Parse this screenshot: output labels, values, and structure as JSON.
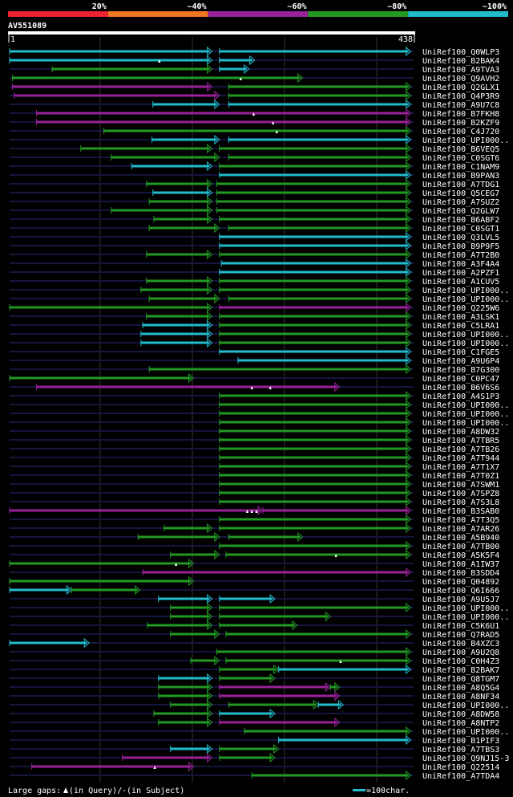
{
  "chart_data": {
    "type": "alignment-map",
    "query_id": "AV551089",
    "query_length": 438,
    "axis_start_label": "1",
    "axis_end_label": "438",
    "legend_scale": {
      "labels": [
        "20%",
        "~40%",
        "~60%",
        "~80%",
        "~100%"
      ],
      "colors": [
        "#ee2233",
        "#ee7722",
        "#992299",
        "#229922",
        "#22bbcc"
      ]
    },
    "colors": {
      "c": "#22bbcc",
      "g": "#229922",
      "p": "#992299",
      "dim": "#151540",
      "grid": "#333333"
    },
    "hits": [
      {
        "name": "UniRef100_Q0WLP3",
        "segs": [
          [
            1,
            220,
            "c"
          ],
          [
            228,
            435,
            "c"
          ]
        ],
        "tri": []
      },
      {
        "name": "UniRef100_B2BAK4",
        "segs": [
          [
            1,
            220,
            "c"
          ],
          [
            228,
            266,
            "c"
          ]
        ],
        "tri": [
          163
        ]
      },
      {
        "name": "UniRef100_A9TVA3",
        "segs": [
          [
            47,
            220,
            "g"
          ],
          [
            228,
            260,
            "c"
          ]
        ],
        "tri": []
      },
      {
        "name": "UniRef100_Q9AVH2",
        "segs": [
          [
            4,
            318,
            "g"
          ]
        ],
        "tri": [
          251
        ]
      },
      {
        "name": "UniRef100_Q2GLX1",
        "segs": [
          [
            4,
            220,
            "p"
          ],
          [
            238,
            435,
            "g"
          ]
        ],
        "tri": []
      },
      {
        "name": "UniRef100_Q4P3R9",
        "segs": [
          [
            6,
            228,
            "p"
          ],
          [
            238,
            435,
            "g"
          ]
        ],
        "tri": []
      },
      {
        "name": "UniRef100_A9U7C8",
        "segs": [
          [
            156,
            228,
            "c"
          ],
          [
            238,
            435,
            "c"
          ]
        ],
        "tri": []
      },
      {
        "name": "UniRef100_B7FKH8",
        "segs": [
          [
            30,
            435,
            "p"
          ]
        ],
        "tri": [
          265
        ]
      },
      {
        "name": "UniRef100_B2KZF9",
        "segs": [
          [
            30,
            435,
            "p"
          ]
        ],
        "tri": [
          286
        ]
      },
      {
        "name": "UniRef100_C4J720",
        "segs": [
          [
            103,
            435,
            "g"
          ]
        ],
        "tri": [
          290
        ]
      },
      {
        "name": "UniRef100_UPI000..",
        "segs": [
          [
            155,
            228,
            "c"
          ],
          [
            238,
            435,
            "c"
          ]
        ],
        "tri": []
      },
      {
        "name": "UniRef100_B6VEQ5",
        "segs": [
          [
            78,
            220,
            "g"
          ],
          [
            228,
            435,
            "g"
          ]
        ],
        "tri": []
      },
      {
        "name": "UniRef100_C0SGT6",
        "segs": [
          [
            111,
            228,
            "g"
          ],
          [
            238,
            435,
            "g"
          ]
        ],
        "tri": []
      },
      {
        "name": "UniRef100_C1NAM9",
        "segs": [
          [
            133,
            220,
            "c"
          ],
          [
            228,
            435,
            "g"
          ]
        ],
        "tri": []
      },
      {
        "name": "UniRef100_B9PAN3",
        "segs": [
          [
            228,
            435,
            "c"
          ]
        ],
        "tri": []
      },
      {
        "name": "UniRef100_A7TDG1",
        "segs": [
          [
            149,
            220,
            "g"
          ],
          [
            225,
            435,
            "g"
          ]
        ],
        "tri": []
      },
      {
        "name": "UniRef100_Q5CEG7",
        "segs": [
          [
            156,
            220,
            "c"
          ],
          [
            225,
            435,
            "g"
          ]
        ],
        "tri": []
      },
      {
        "name": "UniRef100_A7SUZ2",
        "segs": [
          [
            152,
            220,
            "g"
          ],
          [
            225,
            435,
            "g"
          ]
        ],
        "tri": []
      },
      {
        "name": "UniRef100_Q2GLW7",
        "segs": [
          [
            111,
            220,
            "g"
          ],
          [
            225,
            435,
            "g"
          ]
        ],
        "tri": []
      },
      {
        "name": "UniRef100_B6ABF2",
        "segs": [
          [
            157,
            220,
            "g"
          ],
          [
            228,
            435,
            "g"
          ]
        ],
        "tri": []
      },
      {
        "name": "UniRef100_C0SGT1",
        "segs": [
          [
            152,
            228,
            "g"
          ],
          [
            238,
            435,
            "g"
          ]
        ],
        "tri": []
      },
      {
        "name": "UniRef100_Q3LVL5",
        "segs": [
          [
            228,
            435,
            "c"
          ]
        ],
        "tri": []
      },
      {
        "name": "UniRef100_B9P9F5",
        "segs": [
          [
            228,
            435,
            "c"
          ]
        ],
        "tri": []
      },
      {
        "name": "UniRef100_A7T2B0",
        "segs": [
          [
            149,
            220,
            "g"
          ],
          [
            228,
            435,
            "g"
          ]
        ],
        "tri": []
      },
      {
        "name": "UniRef100_A3F4A4",
        "segs": [
          [
            230,
            435,
            "c"
          ]
        ],
        "tri": []
      },
      {
        "name": "UniRef100_A2PZF1",
        "segs": [
          [
            228,
            435,
            "c"
          ]
        ],
        "tri": []
      },
      {
        "name": "UniRef100_A1CUV5",
        "segs": [
          [
            149,
            220,
            "g"
          ],
          [
            228,
            435,
            "g"
          ]
        ],
        "tri": []
      },
      {
        "name": "UniRef100_UPI000..",
        "segs": [
          [
            143,
            220,
            "g"
          ],
          [
            228,
            435,
            "g"
          ]
        ],
        "tri": []
      },
      {
        "name": "UniRef100_UPI000..",
        "segs": [
          [
            152,
            228,
            "g"
          ],
          [
            238,
            435,
            "g"
          ]
        ],
        "tri": []
      },
      {
        "name": "UniRef100_Q225W6",
        "segs": [
          [
            1,
            220,
            "g"
          ],
          [
            228,
            435,
            "p"
          ]
        ],
        "tri": []
      },
      {
        "name": "UniRef100_A3LSK1",
        "segs": [
          [
            149,
            220,
            "g"
          ],
          [
            228,
            435,
            "g"
          ]
        ],
        "tri": []
      },
      {
        "name": "UniRef100_C5LRA1",
        "segs": [
          [
            145,
            220,
            "c"
          ],
          [
            228,
            435,
            "g"
          ]
        ],
        "tri": []
      },
      {
        "name": "UniRef100_UPI000..",
        "segs": [
          [
            143,
            220,
            "c"
          ],
          [
            228,
            435,
            "g"
          ]
        ],
        "tri": []
      },
      {
        "name": "UniRef100_UPI000..",
        "segs": [
          [
            143,
            220,
            "c"
          ],
          [
            228,
            435,
            "g"
          ]
        ],
        "tri": []
      },
      {
        "name": "UniRef100_C1FGE5",
        "segs": [
          [
            228,
            435,
            "c"
          ]
        ],
        "tri": []
      },
      {
        "name": "UniRef100_A9U6P4",
        "segs": [
          [
            248,
            435,
            "c"
          ]
        ],
        "tri": []
      },
      {
        "name": "UniRef100_B7G300",
        "segs": [
          [
            152,
            435,
            "g"
          ]
        ],
        "tri": []
      },
      {
        "name": "UniRef100_C0PC47",
        "segs": [
          [
            1,
            200,
            "g"
          ]
        ],
        "tri": []
      },
      {
        "name": "UniRef100_B6V6S6",
        "segs": [
          [
            30,
            358,
            "p"
          ]
        ],
        "tri": [
          263,
          283
        ]
      },
      {
        "name": "UniRef100_A4S1P3",
        "segs": [
          [
            228,
            435,
            "g"
          ]
        ],
        "tri": []
      },
      {
        "name": "UniRef100_UPI000..",
        "segs": [
          [
            228,
            435,
            "g"
          ]
        ],
        "tri": []
      },
      {
        "name": "UniRef100_UPI000..",
        "segs": [
          [
            228,
            435,
            "g"
          ]
        ],
        "tri": []
      },
      {
        "name": "UniRef100_UPI000..",
        "segs": [
          [
            228,
            435,
            "g"
          ]
        ],
        "tri": []
      },
      {
        "name": "UniRef100_A8DW32",
        "segs": [
          [
            228,
            435,
            "g"
          ]
        ],
        "tri": []
      },
      {
        "name": "UniRef100_A7TBR5",
        "segs": [
          [
            228,
            435,
            "g"
          ]
        ],
        "tri": []
      },
      {
        "name": "UniRef100_A7TB26",
        "segs": [
          [
            228,
            435,
            "g"
          ]
        ],
        "tri": []
      },
      {
        "name": "UniRef100_A7T944",
        "segs": [
          [
            228,
            435,
            "g"
          ]
        ],
        "tri": []
      },
      {
        "name": "UniRef100_A7T1X7",
        "segs": [
          [
            228,
            435,
            "g"
          ]
        ],
        "tri": []
      },
      {
        "name": "UniRef100_A7T0Z1",
        "segs": [
          [
            228,
            435,
            "g"
          ]
        ],
        "tri": []
      },
      {
        "name": "UniRef100_A7SWM1",
        "segs": [
          [
            228,
            435,
            "g"
          ]
        ],
        "tri": []
      },
      {
        "name": "UniRef100_A7SPZ8",
        "segs": [
          [
            228,
            435,
            "g"
          ]
        ],
        "tri": []
      },
      {
        "name": "UniRef100_A7S3L8",
        "segs": [
          [
            228,
            435,
            "g"
          ]
        ],
        "tri": []
      },
      {
        "name": "UniRef100_B3SAB0",
        "segs": [
          [
            1,
            275,
            "p"
          ],
          [
            275,
            435,
            "p"
          ]
        ],
        "tri": [
          258,
          263,
          268
        ]
      },
      {
        "name": "UniRef100_A7T3Q5",
        "segs": [
          [
            228,
            435,
            "g"
          ]
        ],
        "tri": []
      },
      {
        "name": "UniRef100_A7AR26",
        "segs": [
          [
            168,
            220,
            "g"
          ],
          [
            228,
            435,
            "g"
          ]
        ],
        "tri": []
      },
      {
        "name": "UniRef100_A5B940",
        "segs": [
          [
            140,
            228,
            "g"
          ],
          [
            238,
            318,
            "g"
          ]
        ],
        "tri": []
      },
      {
        "name": "UniRef100_A7TB00",
        "segs": [
          [
            228,
            435,
            "g"
          ]
        ],
        "tri": []
      },
      {
        "name": "UniRef100_A5K5F4",
        "segs": [
          [
            175,
            228,
            "g"
          ],
          [
            235,
            435,
            "g"
          ]
        ],
        "tri": [
          354
        ]
      },
      {
        "name": "UniRef100_A1IW37",
        "segs": [
          [
            1,
            200,
            "g"
          ]
        ],
        "tri": [
          181
        ]
      },
      {
        "name": "UniRef100_B3SDD4",
        "segs": [
          [
            145,
            435,
            "p"
          ]
        ],
        "tri": []
      },
      {
        "name": "UniRef100_Q04892",
        "segs": [
          [
            1,
            200,
            "g"
          ]
        ],
        "tri": []
      },
      {
        "name": "UniRef100_Q6I666",
        "segs": [
          [
            1,
            68,
            "c"
          ],
          [
            68,
            142,
            "g"
          ]
        ],
        "tri": []
      },
      {
        "name": "UniRef100_A9U5J7",
        "segs": [
          [
            162,
            220,
            "c"
          ],
          [
            228,
            288,
            "c"
          ]
        ],
        "tri": []
      },
      {
        "name": "UniRef100_UPI000..",
        "segs": [
          [
            175,
            220,
            "g"
          ],
          [
            228,
            435,
            "g"
          ]
        ],
        "tri": []
      },
      {
        "name": "UniRef100_UPI000..",
        "segs": [
          [
            175,
            220,
            "g"
          ],
          [
            228,
            348,
            "g"
          ]
        ],
        "tri": []
      },
      {
        "name": "UniRef100_C5K6U1",
        "segs": [
          [
            150,
            220,
            "g"
          ],
          [
            228,
            312,
            "g"
          ]
        ],
        "tri": []
      },
      {
        "name": "UniRef100_Q7RAD5",
        "segs": [
          [
            175,
            228,
            "g"
          ],
          [
            235,
            435,
            "g"
          ]
        ],
        "tri": []
      },
      {
        "name": "UniRef100_B4XZC3",
        "segs": [
          [
            1,
            87,
            "c"
          ]
        ],
        "tri": []
      },
      {
        "name": "UniRef100_A9U2Q8",
        "segs": [
          [
            225,
            435,
            "g"
          ]
        ],
        "tri": []
      },
      {
        "name": "UniRef100_C0H4Z3",
        "segs": [
          [
            197,
            228,
            "g"
          ],
          [
            235,
            435,
            "g"
          ]
        ],
        "tri": [
          359
        ]
      },
      {
        "name": "UniRef100_B2BAK7",
        "segs": [
          [
            228,
            292,
            "g"
          ],
          [
            292,
            435,
            "c"
          ]
        ],
        "tri": []
      },
      {
        "name": "UniRef100_Q8TGM7",
        "segs": [
          [
            162,
            220,
            "c"
          ],
          [
            228,
            288,
            "g"
          ]
        ],
        "tri": []
      },
      {
        "name": "UniRef100_A8Q5G4",
        "segs": [
          [
            162,
            220,
            "g"
          ],
          [
            228,
            348,
            "p"
          ],
          [
            348,
            358,
            "g"
          ]
        ],
        "tri": []
      },
      {
        "name": "UniRef100_A8NF34",
        "segs": [
          [
            162,
            220,
            "g"
          ],
          [
            228,
            358,
            "p"
          ]
        ],
        "tri": []
      },
      {
        "name": "UniRef100_UPI000..",
        "segs": [
          [
            175,
            220,
            "g"
          ],
          [
            238,
            335,
            "g"
          ],
          [
            335,
            362,
            "c"
          ]
        ],
        "tri": []
      },
      {
        "name": "UniRef100_A8DW58",
        "segs": [
          [
            157,
            220,
            "g"
          ],
          [
            228,
            288,
            "c"
          ]
        ],
        "tri": []
      },
      {
        "name": "UniRef100_A8NTP2",
        "segs": [
          [
            162,
            220,
            "g"
          ],
          [
            228,
            358,
            "p"
          ]
        ],
        "tri": []
      },
      {
        "name": "UniRef100_UPI000..",
        "segs": [
          [
            255,
            435,
            "g"
          ]
        ],
        "tri": []
      },
      {
        "name": "UniRef100_B1PIF3",
        "segs": [
          [
            292,
            435,
            "c"
          ]
        ],
        "tri": []
      },
      {
        "name": "UniRef100_A7TBS3",
        "segs": [
          [
            175,
            220,
            "c"
          ],
          [
            228,
            292,
            "g"
          ]
        ],
        "tri": []
      },
      {
        "name": "UniRef100_Q9NJ15-3",
        "segs": [
          [
            123,
            220,
            "p"
          ],
          [
            228,
            288,
            "g"
          ]
        ],
        "tri": []
      },
      {
        "name": "UniRef100_Q22514",
        "segs": [
          [
            25,
            200,
            "p"
          ]
        ],
        "tri": [
          158
        ]
      },
      {
        "name": "UniRef100_A7TDA4",
        "segs": [
          [
            263,
            435,
            "g"
          ]
        ],
        "tri": []
      }
    ],
    "footer": {
      "large_gaps_label": "Large gaps:",
      "in_query_label": "(in Query)/",
      "dash_symbol": "-",
      "in_subject_label": " (in Subject)",
      "scale_label": "=100char."
    }
  }
}
